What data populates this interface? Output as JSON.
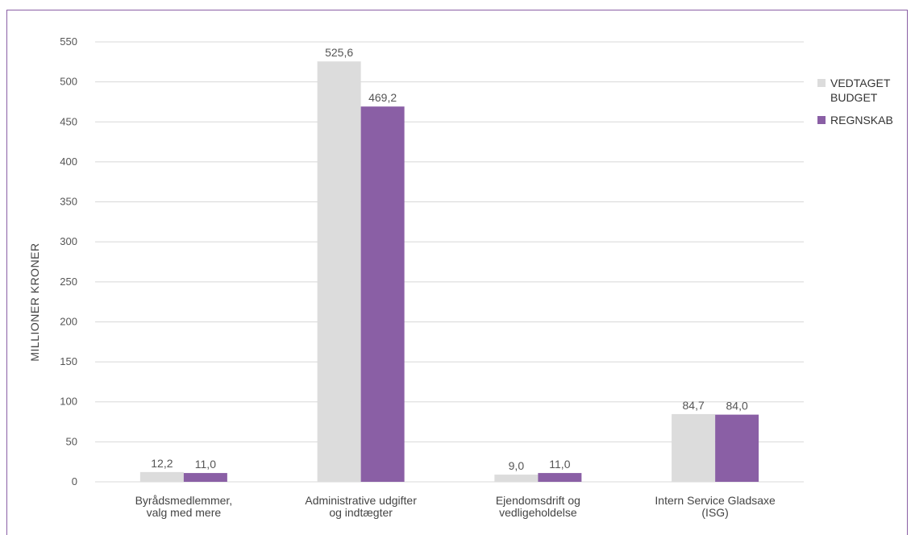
{
  "header": {
    "title": ""
  },
  "chart_data": {
    "type": "bar",
    "categories": [
      [
        "Byrådsmedlemmer,",
        "valg med mere"
      ],
      [
        "Administrative udgifter",
        "og indtægter"
      ],
      [
        "Ejendomsdrift og",
        "vedligeholdelse"
      ],
      [
        "Intern Service Gladsaxe",
        "(ISG)"
      ]
    ],
    "series": [
      {
        "name": "VEDTAGET BUDGET",
        "values": [
          12.2,
          525.6,
          9.0,
          84.7
        ],
        "labels": [
          "12,2",
          "525,6",
          "9,0",
          "84,7"
        ],
        "color": "#dcdcdc"
      },
      {
        "name": "REGNSKAB",
        "values": [
          11.0,
          469.2,
          11.0,
          84.0
        ],
        "labels": [
          "11,0",
          "469,2",
          "11,0",
          "84,0"
        ],
        "color": "#8a5fa5"
      }
    ],
    "ylabel": "MILLIONER KRONER",
    "xlabel": "",
    "ylim": [
      0,
      550
    ],
    "yticks": [
      0,
      50,
      100,
      150,
      200,
      250,
      300,
      350,
      400,
      450,
      500,
      550
    ],
    "grid": true,
    "legend_position": "right"
  },
  "colors": {
    "frame": "#8a5fa5",
    "grid": "#d8d8d8"
  }
}
